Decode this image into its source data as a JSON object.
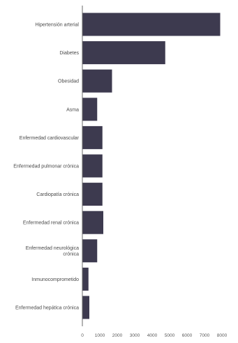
{
  "chart_data": {
    "type": "bar",
    "orientation": "horizontal",
    "title": "",
    "xlabel": "",
    "ylabel": "",
    "categories": [
      "Hipertensión arterial",
      "Diabetes",
      "Obesidad",
      "Asma",
      "Enfermedad cardiovascular",
      "Enfermedad pulmonar crónica",
      "Cardiopatía crónica",
      "Enfermedad renal crónica",
      "Enfermedad neurológica crónica",
      "Inmunocomprometido",
      "Enfermedad hepática crónica"
    ],
    "category_lines": [
      [
        "Hipertensión arterial"
      ],
      [
        "Diabetes"
      ],
      [
        "Obesidad"
      ],
      [
        "Asma"
      ],
      [
        "Enfermedad cardiovascular"
      ],
      [
        "Enfermedad pulmonar crónica"
      ],
      [
        "Cardiopatía crónica"
      ],
      [
        "Enfermedad renal crónica"
      ],
      [
        "Enfermedad neurológica",
        "crónica"
      ],
      [
        "Inmunocomprometido"
      ],
      [
        "Enfermedad hepática crónica"
      ]
    ],
    "values": [
      7900,
      4750,
      1700,
      850,
      1150,
      1150,
      1150,
      1200,
      850,
      350,
      400
    ],
    "xlim": [
      0,
      8000
    ],
    "xticks": [
      0,
      1000,
      2000,
      3000,
      4000,
      5000,
      6000,
      7000,
      8000
    ],
    "xtick_labels": [
      "0",
      "1000",
      "2000",
      "3000",
      "4000",
      "5000",
      "6000",
      "7000",
      "8000"
    ],
    "grid": false,
    "legend": "none",
    "bar_color": "#3d3a4f"
  }
}
